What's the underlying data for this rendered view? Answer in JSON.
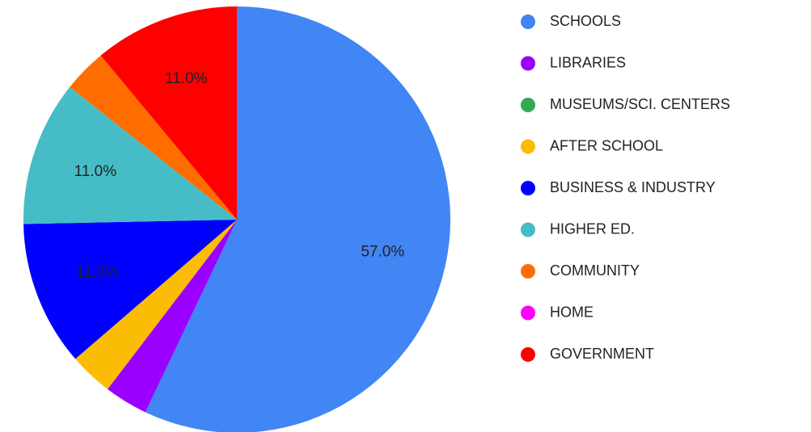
{
  "chart_data": {
    "type": "pie",
    "categories": [
      "SCHOOLS",
      "LIBRARIES",
      "MUSEUMS/SCI. CENTERS",
      "AFTER SCHOOL",
      "BUSINESS & INDUSTRY",
      "HIGHER ED.",
      "COMMUNITY",
      "HOME",
      "GOVERNMENT"
    ],
    "values": [
      57,
      3.3,
      0,
      3.3,
      11,
      11,
      3.3,
      0,
      11
    ],
    "value_labels": [
      "57.0%",
      null,
      null,
      null,
      "11.0%",
      "11.0%",
      null,
      null,
      "11.0%"
    ],
    "colors": [
      "#4285f4",
      "#9900ff",
      "#34a853",
      "#fbbc04",
      "#0000ff",
      "#46bdc6",
      "#ff6d01",
      "#ff00ff",
      "#ff0000"
    ]
  }
}
